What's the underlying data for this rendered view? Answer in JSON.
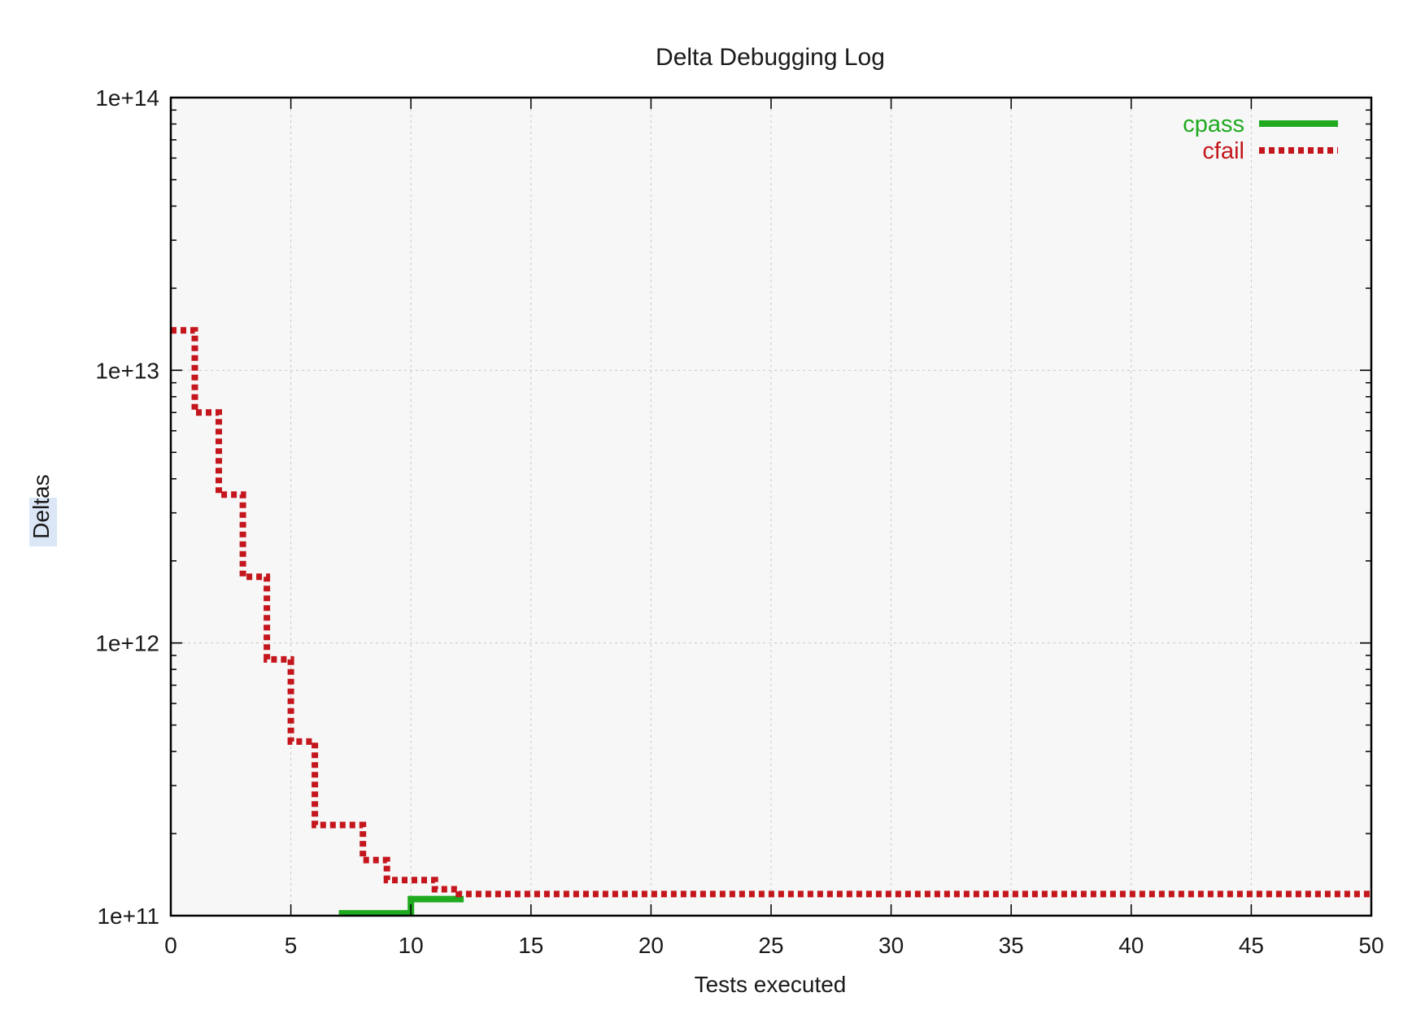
{
  "chart_data": {
    "type": "line",
    "title": "Delta Debugging Log",
    "xlabel": "Tests executed",
    "ylabel": "Deltas",
    "xlim": [
      0,
      50
    ],
    "ylim": [
      100000000000.0,
      100000000000000.0
    ],
    "yscale": "log",
    "xticks": [
      0,
      5,
      10,
      15,
      20,
      25,
      30,
      35,
      40,
      45,
      50
    ],
    "xtick_labels": [
      "0",
      "5",
      "10",
      "15",
      "20",
      "25",
      "30",
      "35",
      "40",
      "45",
      "50"
    ],
    "yticks": [
      100000000000.0,
      1000000000000.0,
      10000000000000.0,
      100000000000000.0
    ],
    "ytick_labels": [
      "1e+11",
      "1e+12",
      "1e+13",
      "1e+14"
    ],
    "grid": true,
    "legend": "top-right",
    "series": [
      {
        "name": "cpass",
        "color": "#1faa1f",
        "style": "solid",
        "step": true,
        "x": [
          7,
          10,
          12.2
        ],
        "y": [
          102000000000.0,
          115000000000.0,
          115000000000.0
        ]
      },
      {
        "name": "cfail",
        "color": "#c4161c",
        "style": "dotted",
        "step": true,
        "x": [
          0,
          1,
          2,
          3,
          4,
          5,
          6,
          8,
          9,
          11,
          12,
          50
        ],
        "y": [
          14000000000000.0,
          7000000000000.0,
          3500000000000.0,
          1750000000000.0,
          870000000000.0,
          435000000000.0,
          215000000000.0,
          160000000000.0,
          135000000000.0,
          125000000000.0,
          120000000000.0,
          120000000000.0
        ]
      }
    ]
  }
}
